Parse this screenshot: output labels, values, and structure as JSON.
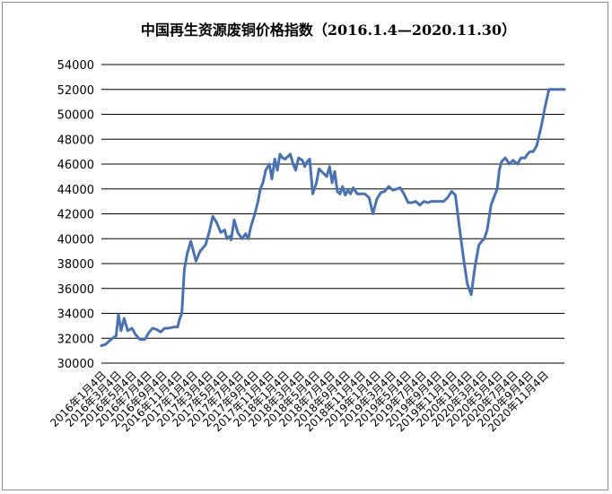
{
  "chart_data": {
    "type": "line",
    "title": "中国再生资源废铜价格指数（2016.1.4—2020.11.30）",
    "xlabel": "",
    "ylabel": "",
    "ylim": [
      30000,
      54000
    ],
    "yticks": [
      30000,
      32000,
      34000,
      36000,
      38000,
      40000,
      42000,
      44000,
      46000,
      48000,
      50000,
      52000,
      54000
    ],
    "ytick_labels": [
      "30000",
      "32000",
      "34000",
      "36000",
      "38000",
      "40000",
      "42000",
      "44000",
      "46000",
      "48000",
      "50000",
      "52000",
      "54000"
    ],
    "grid": true,
    "legend": "none",
    "colors": {
      "series": "#4a72b0",
      "grid": "#000000"
    },
    "x_tick_labels": [
      "2016年1月4日",
      "2016年3月4日",
      "2016年5月4日",
      "2016年7月4日",
      "2016年9月4日",
      "2016年11月4日",
      "2017年1月4日",
      "2017年3月4日",
      "2017年5月4日",
      "2017年7月4日",
      "2017年9月4日",
      "2017年11月4日",
      "2018年1月4日",
      "2018年3月4日",
      "2018年5月4日",
      "2018年7月4日",
      "2018年9月4日",
      "2018年11月4日",
      "2019年1月4日",
      "2019年3月4日",
      "2019年5月4日",
      "2019年7月4日",
      "2019年9月4日",
      "2019年11月4日",
      "2020年1月4日",
      "2020年3月4日",
      "2020年5月4日",
      "2020年7月4日",
      "2020年9月4日",
      "2020年11月4日"
    ],
    "series": [
      {
        "x": [
          "2016-01-04",
          "2016-01-20",
          "2016-02-10",
          "2016-03-01",
          "2016-03-10",
          "2016-03-20",
          "2016-04-01",
          "2016-04-15",
          "2016-05-01",
          "2016-05-15",
          "2016-06-01",
          "2016-06-20",
          "2016-07-04",
          "2016-07-20",
          "2016-08-05",
          "2016-08-20",
          "2016-09-05",
          "2016-09-20",
          "2016-10-10",
          "2016-10-25",
          "2016-11-01",
          "2016-11-10",
          "2016-11-20",
          "2016-12-01",
          "2016-12-15",
          "2017-01-04",
          "2017-01-20",
          "2017-02-10",
          "2017-02-25",
          "2017-03-10",
          "2017-03-25",
          "2017-04-10",
          "2017-04-25",
          "2017-05-04",
          "2017-05-15",
          "2017-05-20",
          "2017-06-01",
          "2017-06-15",
          "2017-07-01",
          "2017-07-15",
          "2017-07-25",
          "2017-08-05",
          "2017-08-20",
          "2017-09-01",
          "2017-09-10",
          "2017-09-20",
          "2017-10-01",
          "2017-10-15",
          "2017-10-25",
          "2017-11-05",
          "2017-11-15",
          "2017-11-25",
          "2017-12-05",
          "2017-12-15",
          "2018-01-04",
          "2018-01-15",
          "2018-01-25",
          "2018-02-05",
          "2018-02-20",
          "2018-03-01",
          "2018-03-10",
          "2018-03-20",
          "2018-04-01",
          "2018-04-15",
          "2018-04-25",
          "2018-05-10",
          "2018-05-25",
          "2018-06-05",
          "2018-06-15",
          "2018-06-25",
          "2018-07-05",
          "2018-07-15",
          "2018-07-25",
          "2018-08-05",
          "2018-08-15",
          "2018-08-25",
          "2018-09-05",
          "2018-09-20",
          "2018-10-05",
          "2018-10-20",
          "2018-11-05",
          "2018-11-20",
          "2018-12-05",
          "2018-12-20",
          "2019-01-04",
          "2019-01-20",
          "2019-02-05",
          "2019-02-20",
          "2019-03-05",
          "2019-03-20",
          "2019-04-05",
          "2019-04-20",
          "2019-05-05",
          "2019-05-20",
          "2019-06-05",
          "2019-06-20",
          "2019-07-05",
          "2019-07-20",
          "2019-08-05",
          "2019-08-20",
          "2019-09-05",
          "2019-09-20",
          "2019-10-05",
          "2019-10-20",
          "2019-11-05",
          "2019-11-20",
          "2019-12-05",
          "2019-12-20",
          "2020-01-04",
          "2020-01-15",
          "2020-01-25",
          "2020-02-05",
          "2020-02-20",
          "2020-03-05",
          "2020-03-15",
          "2020-03-23",
          "2020-04-01",
          "2020-04-15",
          "2020-05-01",
          "2020-05-15",
          "2020-06-01",
          "2020-06-15",
          "2020-07-01",
          "2020-07-10",
          "2020-07-20",
          "2020-08-01",
          "2020-08-15",
          "2020-09-01",
          "2020-09-15",
          "2020-10-01",
          "2020-10-15",
          "2020-11-01",
          "2020-11-10",
          "2020-11-20",
          "2020-11-25",
          "2020-11-30"
        ],
        "values": [
          31400,
          31500,
          31900,
          32200,
          33900,
          32600,
          33600,
          32600,
          32800,
          32300,
          31900,
          31900,
          32400,
          32800,
          32700,
          32500,
          32800,
          32800,
          32900,
          32900,
          33500,
          34000,
          37500,
          38800,
          39800,
          38200,
          39000,
          39500,
          40600,
          41800,
          41300,
          40500,
          40700,
          40000,
          40200,
          39900,
          41500,
          40500,
          40000,
          40400,
          40000,
          41000,
          42000,
          43000,
          44000,
          44500,
          45500,
          46000,
          44800,
          46400,
          45500,
          46800,
          46500,
          46400,
          46800,
          46000,
          45500,
          46500,
          46300,
          45800,
          46200,
          46400,
          43600,
          44500,
          45600,
          45300,
          45000,
          45800,
          44500,
          45400,
          43800,
          43600,
          44200,
          43500,
          43900,
          43600,
          44100,
          43600,
          43600,
          43600,
          43300,
          42000,
          43200,
          43700,
          43800,
          44200,
          43900,
          44000,
          44100,
          43600,
          42900,
          42900,
          43000,
          42700,
          43000,
          42900,
          43000,
          43000,
          43000,
          43000,
          43300,
          43800,
          43500,
          41000,
          38500,
          36400,
          35500,
          37800,
          39500,
          39800,
          40000,
          40700,
          42700,
          43500,
          44000,
          45500,
          46200,
          46500,
          46000,
          46300,
          46000,
          46500,
          46500,
          46800,
          47000,
          47000,
          47500,
          49000,
          50500,
          52000,
          52000,
          52000,
          52000,
          52000,
          52000,
          52000
        ]
      }
    ]
  }
}
